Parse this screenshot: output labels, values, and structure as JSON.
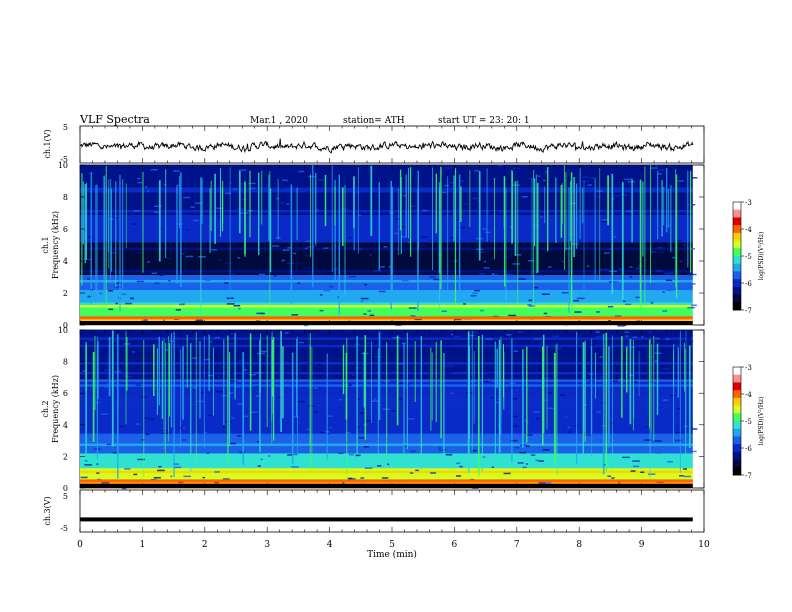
{
  "header": {
    "title": "VLF  Spectra",
    "date": "Mar.1  , 2020",
    "station": "station= ATH",
    "start": "start  UT  =    23: 20: 1"
  },
  "colorbar_label": "log(PSD)(V²/Hz)",
  "colors": {
    "spectrogram_scale": [
      "#000000",
      "#000a3c",
      "#00128a",
      "#0a2ac8",
      "#1a60e8",
      "#22a8f0",
      "#30e0d0",
      "#40ff60",
      "#d0ff20",
      "#ffd000",
      "#ff6000",
      "#e00000",
      "#ff9090",
      "#ffffff"
    ],
    "trace": "#000000"
  },
  "chart_data": [
    {
      "type": "line",
      "ylabel": "ch.1(V)",
      "ylim": [
        -5,
        5
      ],
      "yticks": [
        "5",
        "-5"
      ],
      "xlim": [
        0,
        10
      ],
      "description_of_signal": "noisy trace near -0.5 V",
      "baseline": -0.5
    },
    {
      "type": "heatmap",
      "ylabel_lines": [
        "ch.1",
        "Frequency  (kHz)"
      ],
      "ylim": [
        0,
        10
      ],
      "yticks": [
        "0",
        "2",
        "4",
        "6",
        "8",
        "10"
      ],
      "xlim": [
        0,
        10
      ],
      "colorbar": {
        "range": [
          -7,
          -3
        ],
        "ticks": [
          "-3",
          "-4",
          "-5",
          "-6",
          "-7"
        ]
      }
    },
    {
      "type": "heatmap",
      "ylabel_lines": [
        "ch.2",
        "Frequency  (kHz)"
      ],
      "ylim": [
        0,
        10
      ],
      "yticks": [
        "0",
        "2",
        "4",
        "6",
        "8",
        "10"
      ],
      "xlim": [
        0,
        10
      ],
      "colorbar": {
        "range": [
          -7,
          -3
        ],
        "ticks": [
          "-3",
          "-4",
          "-5",
          "-6",
          "-7"
        ]
      }
    },
    {
      "type": "line",
      "ylabel": "ch.3(V)",
      "ylim": [
        -5,
        5
      ],
      "yticks": [
        "5",
        "-5"
      ],
      "xlim": [
        0,
        10
      ],
      "baseline": -2
    }
  ],
  "xaxis": {
    "label": "Time  (min)",
    "ticks": [
      "0",
      "1",
      "2",
      "3",
      "4",
      "5",
      "6",
      "7",
      "8",
      "9",
      "10"
    ],
    "data_end": 9.82
  }
}
